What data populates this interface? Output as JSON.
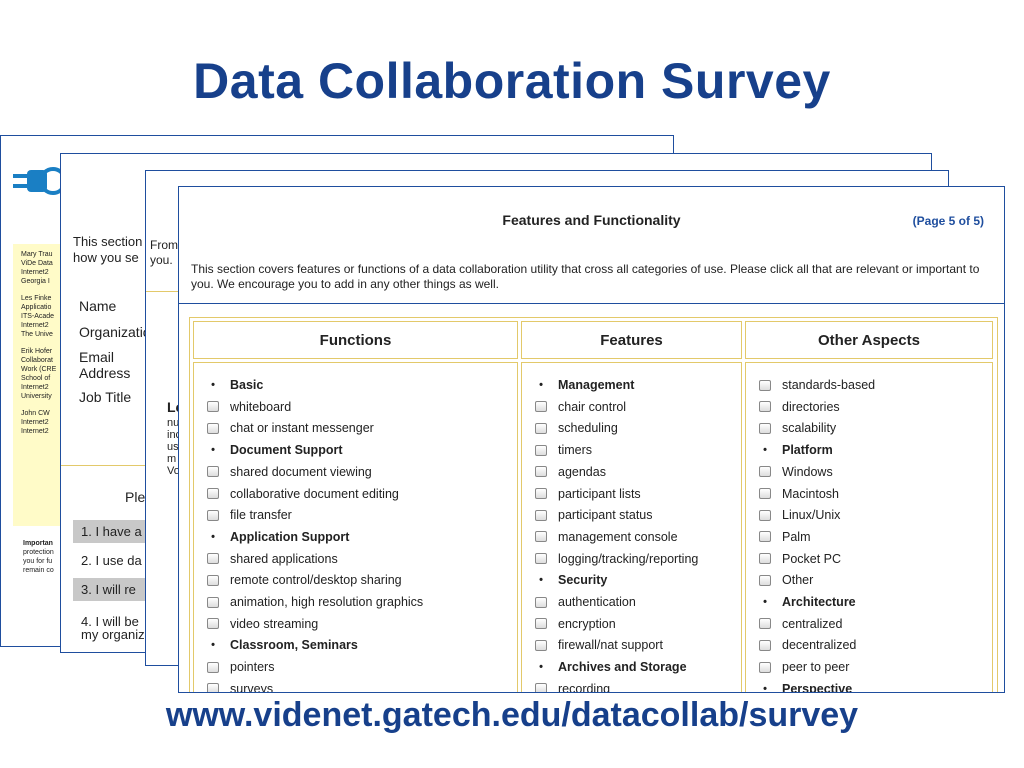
{
  "slide": {
    "title": "Data Collaboration Survey",
    "url": "www.videnet.gatech.edu/datacollab/survey"
  },
  "page1": {
    "contacts": [
      [
        "Mary Trau",
        "ViDe Data",
        "Internet2",
        "Georgia I"
      ],
      [
        "Les Finke",
        "Applicatio",
        "ITS-Acade",
        "Internet2",
        "The Unive"
      ],
      [
        "Erik Hofer",
        "Collaborat",
        "Work (CRE",
        "School of",
        "Internet2",
        "University"
      ],
      [
        "John CW",
        "Internet2",
        "Internet2"
      ]
    ],
    "important_heading": "Importan",
    "important_lines": [
      "protection",
      "you for fu",
      "remain co"
    ]
  },
  "page2": {
    "intro_lines": [
      "This section",
      "how you se"
    ],
    "fields": [
      "Name",
      "Organizatio",
      "Email",
      "Address",
      "Job Title"
    ],
    "please": "Ple",
    "options": [
      "1. I have a",
      "2. I use da",
      "3. I will re",
      "4. I will be",
      "my organiz"
    ]
  },
  "page3": {
    "from_lines": [
      "From",
      "you."
    ],
    "bold_fragment": "Le",
    "fragments": [
      "nu",
      "inc",
      "us",
      "m",
      "Vo"
    ]
  },
  "page4": {
    "title": "Features and Functionality",
    "page_label": "(Page 5 of 5)",
    "description": "This section covers features or functions of a data collaboration utility that cross all categories of use. Please click all that are relevant or important to you. We encourage you to add in any other things as well.",
    "columns": [
      {
        "header": "Functions",
        "items": [
          {
            "label": "Basic",
            "heading": true
          },
          {
            "label": "whiteboard",
            "heading": false
          },
          {
            "label": "chat or instant messenger",
            "heading": false
          },
          {
            "label": "Document Support",
            "heading": true
          },
          {
            "label": "shared document viewing",
            "heading": false
          },
          {
            "label": "collaborative document editing",
            "heading": false
          },
          {
            "label": "file transfer",
            "heading": false
          },
          {
            "label": "Application Support",
            "heading": true
          },
          {
            "label": "shared applications",
            "heading": false
          },
          {
            "label": "remote control/desktop sharing",
            "heading": false
          },
          {
            "label": "animation, high resolution graphics",
            "heading": false
          },
          {
            "label": "video streaming",
            "heading": false
          },
          {
            "label": "Classroom, Seminars",
            "heading": true
          },
          {
            "label": "pointers",
            "heading": false
          },
          {
            "label": "surveys",
            "heading": false
          }
        ]
      },
      {
        "header": "Features",
        "items": [
          {
            "label": "Management",
            "heading": true
          },
          {
            "label": "chair control",
            "heading": false
          },
          {
            "label": "scheduling",
            "heading": false
          },
          {
            "label": "timers",
            "heading": false
          },
          {
            "label": "agendas",
            "heading": false
          },
          {
            "label": "participant lists",
            "heading": false
          },
          {
            "label": "participant status",
            "heading": false
          },
          {
            "label": "management console",
            "heading": false
          },
          {
            "label": "logging/tracking/reporting",
            "heading": false
          },
          {
            "label": "Security",
            "heading": true
          },
          {
            "label": "authentication",
            "heading": false
          },
          {
            "label": "encryption",
            "heading": false
          },
          {
            "label": "firewall/nat support",
            "heading": false
          },
          {
            "label": "Archives and Storage",
            "heading": true
          },
          {
            "label": "recording",
            "heading": false
          }
        ]
      },
      {
        "header": "Other Aspects",
        "items": [
          {
            "label": "standards-based",
            "heading": false
          },
          {
            "label": "directories",
            "heading": false
          },
          {
            "label": "scalability",
            "heading": false
          },
          {
            "label": "Platform",
            "heading": true
          },
          {
            "label": "Windows",
            "heading": false
          },
          {
            "label": "Macintosh",
            "heading": false
          },
          {
            "label": "Linux/Unix",
            "heading": false
          },
          {
            "label": "Palm",
            "heading": false
          },
          {
            "label": "Pocket PC",
            "heading": false
          },
          {
            "label": "Other",
            "heading": false
          },
          {
            "label": "Architecture",
            "heading": true
          },
          {
            "label": "centralized",
            "heading": false
          },
          {
            "label": "decentralized",
            "heading": false
          },
          {
            "label": "peer to peer",
            "heading": false
          },
          {
            "label": "Perspective",
            "heading": true
          }
        ]
      }
    ]
  },
  "colors": {
    "title_blue": "#17408b",
    "page_border": "#1f4e9e",
    "table_border": "#e3c96a",
    "contact_bg": "#fffbc8"
  }
}
